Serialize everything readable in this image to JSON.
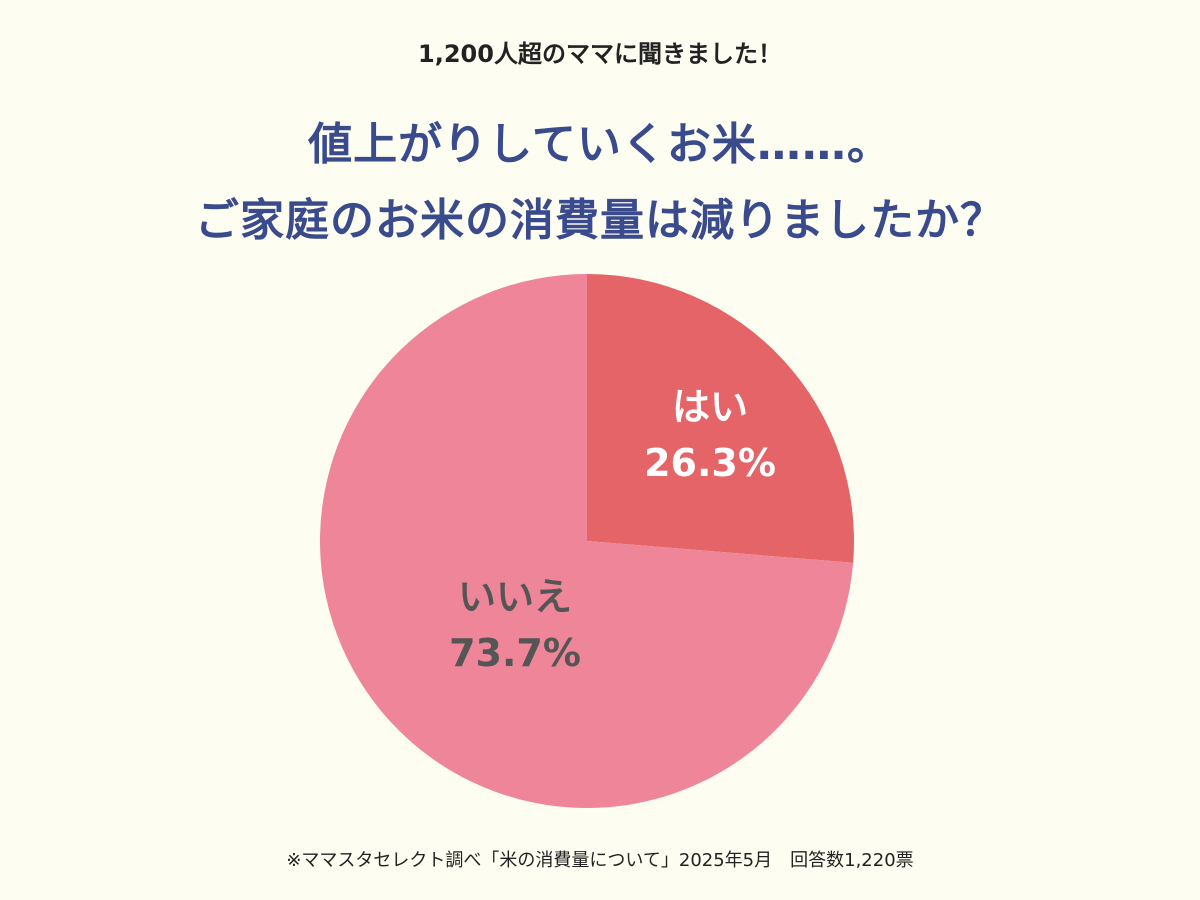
{
  "header": {
    "subtitle": "1,200人超のママに聞きました！",
    "title_line1": "値上がりしていくお米……。",
    "title_line2": "ご家庭のお米の消費量は減りましたか？"
  },
  "chart_data": {
    "type": "pie",
    "title": "ご家庭のお米の消費量は減りましたか？",
    "slices": [
      {
        "label": "はい",
        "value": 26.3,
        "value_label": "26.3%",
        "color": "#e46468",
        "text_color": "#ffffff"
      },
      {
        "label": "いいえ",
        "value": 73.7,
        "value_label": "73.7%",
        "color": "#ef8599",
        "text_color": "#555555"
      }
    ],
    "start": "top",
    "direction": "clockwise"
  },
  "footer": {
    "source": "※ママスタセレクト調べ「米の消費量について」2025年5月　回答数1,220票"
  }
}
